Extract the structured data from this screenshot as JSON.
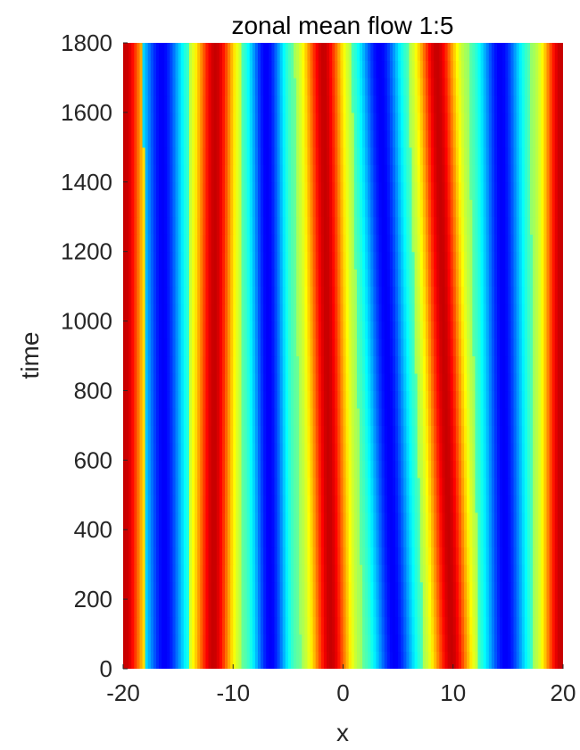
{
  "chart_data": {
    "type": "heatmap",
    "title": "zonal mean flow  1:5",
    "xlabel": "x",
    "ylabel": "time",
    "xlim": [
      -20,
      20
    ],
    "ylim": [
      0,
      1800
    ],
    "x_ticks": [
      -20,
      -10,
      0,
      10,
      20
    ],
    "y_ticks": [
      0,
      200,
      400,
      600,
      800,
      1000,
      1200,
      1400,
      1600,
      1800
    ],
    "x_tick_labels": [
      "-20",
      "-10",
      "0",
      "10",
      "20"
    ],
    "y_tick_labels": [
      "0",
      "200",
      "400",
      "600",
      "800",
      "1000",
      "1200",
      "1400",
      "1600",
      "1800"
    ],
    "colormap": "jet",
    "grid": false,
    "bands": [
      {
        "kind": "max",
        "x_at_t0": -19.8,
        "x_at_t1800": -19.8,
        "width": 2.6
      },
      {
        "kind": "min",
        "x_at_t0": -16.2,
        "x_at_t1800": -16.5,
        "width": 2.8
      },
      {
        "kind": "max",
        "x_at_t0": -11.8,
        "x_at_t1800": -11.6,
        "width": 2.6
      },
      {
        "kind": "min",
        "x_at_t0": -6.6,
        "x_at_t1800": -7.0,
        "width": 2.4
      },
      {
        "kind": "max",
        "x_at_t0": -1.1,
        "x_at_t1800": -1.8,
        "width": 2.6
      },
      {
        "kind": "min",
        "x_at_t0": 4.7,
        "x_at_t1800": 3.3,
        "width": 2.8
      },
      {
        "kind": "max",
        "x_at_t0": 9.9,
        "x_at_t1800": 8.5,
        "width": 2.6
      },
      {
        "kind": "min",
        "x_at_t0": 14.8,
        "x_at_t1800": 14.3,
        "width": 2.8
      },
      {
        "kind": "max",
        "x_at_t0": 19.8,
        "x_at_t1800": 19.8,
        "width": 2.4
      }
    ]
  }
}
